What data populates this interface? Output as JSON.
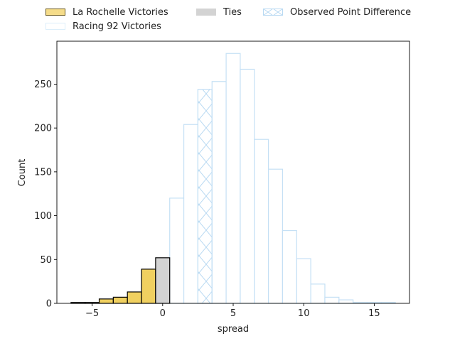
{
  "chart_data": {
    "type": "bar",
    "xlabel": "spread",
    "ylabel": "Count",
    "xlim": [
      -7.5,
      17.5
    ],
    "ylim": [
      0,
      299
    ],
    "xticks": [
      -5,
      0,
      5,
      10,
      15
    ],
    "yticks": [
      0,
      50,
      100,
      150,
      200,
      250
    ],
    "xtick_labels": [
      "−5",
      "0",
      "5",
      "10",
      "15"
    ],
    "ytick_labels": [
      "0",
      "50",
      "100",
      "150",
      "200",
      "250"
    ],
    "bin_width": 1,
    "series": [
      {
        "name": "La Rochelle Victories",
        "color": "#f0d060",
        "edge_color": "#000000",
        "bins": [
          {
            "x": -6,
            "count": 1
          },
          {
            "x": -5,
            "count": 1
          },
          {
            "x": -4,
            "count": 5
          },
          {
            "x": -3,
            "count": 7
          },
          {
            "x": -2,
            "count": 13
          },
          {
            "x": -1,
            "count": 39
          }
        ]
      },
      {
        "name": "Ties",
        "color": "#d3d3d3",
        "edge_color": "#000000",
        "bins": [
          {
            "x": 0,
            "count": 52
          }
        ]
      },
      {
        "name": "Racing 92 Victories",
        "color": "#ffffff",
        "edge_color": "#c5e0f5",
        "bins": [
          {
            "x": 1,
            "count": 120
          },
          {
            "x": 2,
            "count": 204
          },
          {
            "x": 3,
            "count": 244
          },
          {
            "x": 4,
            "count": 253
          },
          {
            "x": 5,
            "count": 285
          },
          {
            "x": 6,
            "count": 267
          },
          {
            "x": 7,
            "count": 187
          },
          {
            "x": 8,
            "count": 153
          },
          {
            "x": 9,
            "count": 83
          },
          {
            "x": 10,
            "count": 51
          },
          {
            "x": 11,
            "count": 22
          },
          {
            "x": 12,
            "count": 7
          },
          {
            "x": 13,
            "count": 4
          },
          {
            "x": 14,
            "count": 1
          },
          {
            "x": 15,
            "count": 1
          },
          {
            "x": 16,
            "count": 1
          }
        ]
      }
    ],
    "observed_point_difference": {
      "name": "Observed Point Difference",
      "x": 3,
      "count": 244,
      "hatch": "x",
      "edge_color": "#c5e0f5"
    },
    "legend": {
      "placement": "top",
      "ncol": 3,
      "entries": [
        "La Rochelle Victories",
        "Ties",
        "Observed Point Difference",
        "Racing 92 Victories"
      ]
    },
    "grid": false
  }
}
